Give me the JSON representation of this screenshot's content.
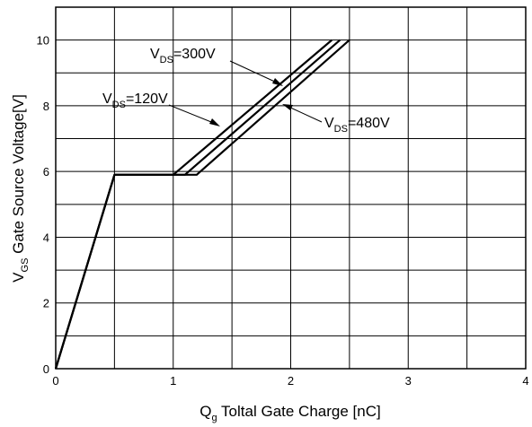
{
  "chart_data": {
    "type": "line",
    "xlabel": {
      "main": "Q",
      "sub": "g",
      "rest": " Toltal Gate Charge [nC]"
    },
    "ylabel": {
      "main": "V",
      "sub": "GS",
      "rest": " Gate Source Voltage[V]"
    },
    "xlim": [
      0,
      4
    ],
    "ylim": [
      0,
      11
    ],
    "x_ticks": [
      0,
      1,
      2,
      3,
      4
    ],
    "x_tick_labels": [
      "0",
      "1",
      "2",
      "3",
      "4"
    ],
    "y_ticks": [
      0,
      2,
      4,
      6,
      8,
      10
    ],
    "y_tick_labels": [
      "0",
      "2",
      "4",
      "6",
      "8",
      "10"
    ],
    "x_grid": [
      0.5,
      1,
      1.5,
      2,
      2.5,
      3,
      3.5
    ],
    "y_grid": [
      1,
      2,
      3,
      4,
      5,
      6,
      7,
      8,
      9,
      10
    ],
    "grid": true,
    "series": [
      {
        "name": "VDS=120V",
        "label": {
          "main": "V",
          "sub": "DS",
          "rest": "=120V"
        },
        "points": [
          [
            0,
            0
          ],
          [
            0.5,
            5.9
          ],
          [
            1.0,
            5.9
          ],
          [
            2.35,
            10
          ]
        ]
      },
      {
        "name": "VDS=300V",
        "label": {
          "main": "V",
          "sub": "DS",
          "rest": "=300V"
        },
        "points": [
          [
            0,
            0
          ],
          [
            0.5,
            5.9
          ],
          [
            1.1,
            5.9
          ],
          [
            2.42,
            10
          ]
        ]
      },
      {
        "name": "VDS=480V",
        "label": {
          "main": "V",
          "sub": "DS",
          "rest": "=480V"
        },
        "points": [
          [
            0,
            0
          ],
          [
            0.5,
            5.9
          ],
          [
            1.2,
            5.9
          ],
          [
            2.5,
            10
          ]
        ]
      }
    ]
  }
}
